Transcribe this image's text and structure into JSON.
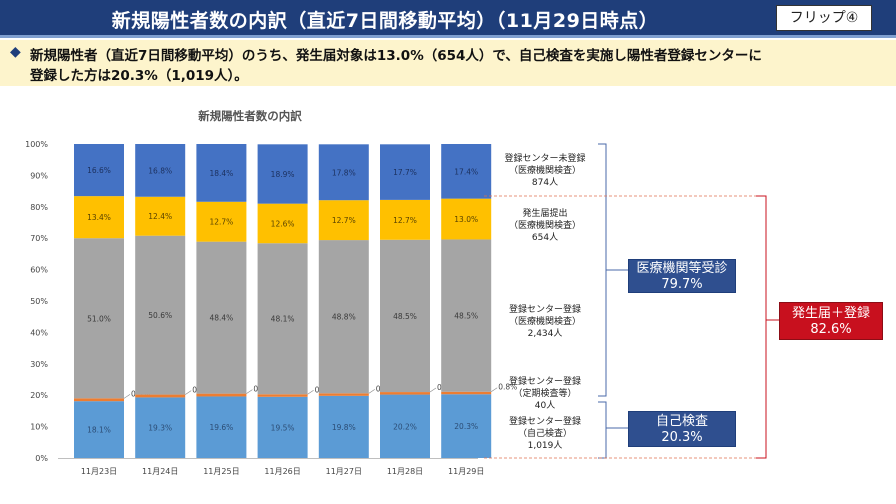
{
  "header": {
    "title": "新規陽性者数の内訳（直近7日間移動平均）（11月29日時点）",
    "flip_label": "フリップ④"
  },
  "summary": {
    "bullet": "◆",
    "line1": "新規陽性者（直近7日間移動平均）のうち、発生届対象は13.0%（654人）で、自己検査を実施し陽性者登録センターに",
    "line2": "登録した方は20.3%（1,019人）。"
  },
  "chart_data": {
    "type": "bar",
    "stacked": true,
    "title": "新規陽性者数の内訳",
    "categories": [
      "11月23日",
      "11月24日",
      "11月25日",
      "11月26日",
      "11月27日",
      "11月28日",
      "11月29日"
    ],
    "y_ticks": [
      "0%",
      "10%",
      "20%",
      "30%",
      "40%",
      "50%",
      "60%",
      "70%",
      "80%",
      "90%",
      "100%"
    ],
    "ylim": [
      0,
      100
    ],
    "grid": false,
    "series": [
      {
        "key": "self",
        "color": "#5b9bd5",
        "values": [
          18.1,
          19.3,
          19.6,
          19.5,
          19.8,
          20.2,
          20.3
        ],
        "labels": [
          "18.1%",
          "19.3%",
          "19.6%",
          "19.5%",
          "19.8%",
          "20.2%",
          "20.3%"
        ]
      },
      {
        "key": "regular",
        "color": "#ed7d31",
        "values": [
          0.9,
          0.9,
          0.9,
          0.8,
          0.8,
          0.8,
          0.8
        ],
        "labels": [
          "0.9%",
          "0.9%",
          "0.9%",
          "0.8%",
          "0.8%",
          "0.8%",
          "0.8%"
        ]
      },
      {
        "key": "center_med",
        "color": "#a5a5a5",
        "values": [
          51.0,
          50.6,
          48.4,
          48.1,
          48.8,
          48.5,
          48.5
        ],
        "labels": [
          "51.0%",
          "50.6%",
          "48.4%",
          "48.1%",
          "48.8%",
          "48.5%",
          "48.5%"
        ]
      },
      {
        "key": "notified",
        "color": "#ffc000",
        "values": [
          13.4,
          12.4,
          12.7,
          12.6,
          12.7,
          12.7,
          13.0
        ],
        "labels": [
          "13.4%",
          "12.4%",
          "12.7%",
          "12.6%",
          "12.7%",
          "12.7%",
          "13.0%"
        ]
      },
      {
        "key": "unregistered",
        "color": "#4472c4",
        "values": [
          16.6,
          16.8,
          18.4,
          18.9,
          17.8,
          17.7,
          17.4
        ],
        "labels": [
          "16.6%",
          "16.8%",
          "18.4%",
          "18.9%",
          "17.8%",
          "17.7%",
          "17.4%"
        ]
      }
    ]
  },
  "segment_labels": {
    "unregistered": {
      "name": "登録センター未登録",
      "sub": "（医療機関検査）",
      "count": "874人"
    },
    "notified": {
      "name": "発生届提出",
      "sub": "（医療機関検査）",
      "count": "654人"
    },
    "center_med": {
      "name": "登録センター登録",
      "sub": "（医療機関検査）",
      "count": "2,434人"
    },
    "regular": {
      "name": "登録センター登録",
      "sub": "（定期検査等）",
      "count": "40人"
    },
    "self": {
      "name": "登録センター登録",
      "sub": "（自己検査）",
      "count": "1,019人"
    }
  },
  "groups": {
    "medical": {
      "label": "医療機関等受診",
      "value": "79.7%"
    },
    "self_test": {
      "label": "自己検査",
      "value": "20.3%"
    },
    "notified_total": {
      "label": "発生届＋登録",
      "value": "82.6%"
    }
  }
}
